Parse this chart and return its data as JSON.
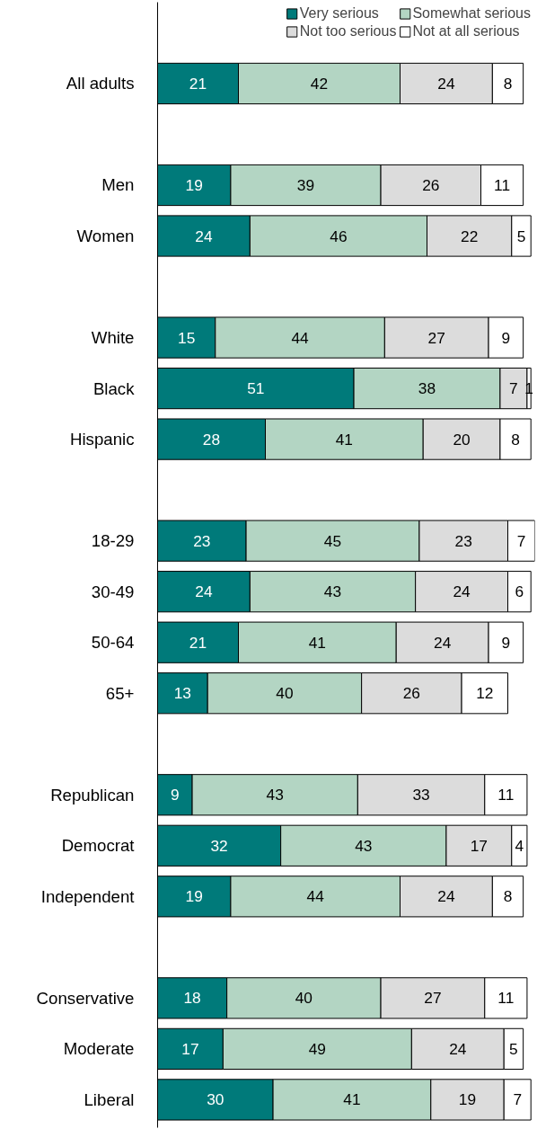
{
  "chart_data": {
    "type": "bar",
    "orientation": "horizontal",
    "stacked": true,
    "data_labels": true,
    "legend": "top",
    "grid": false,
    "categories": [
      "All adults",
      null,
      "Men",
      "Women",
      null,
      "White",
      "Black",
      "Hispanic",
      null,
      "18-29",
      "30-49",
      "50-64",
      "65+",
      null,
      "Republican",
      "Democrat",
      "Independent",
      null,
      "Conservative",
      "Moderate",
      "Liberal"
    ],
    "series": [
      {
        "name": "Very serious",
        "color": "#007a7a",
        "values": [
          21,
          null,
          19,
          24,
          null,
          15,
          51,
          28,
          null,
          23,
          24,
          21,
          13,
          null,
          9,
          32,
          19,
          null,
          18,
          17,
          30
        ]
      },
      {
        "name": "Somewhat serious",
        "color": "#b3d5c3",
        "values": [
          42,
          null,
          39,
          46,
          null,
          44,
          38,
          41,
          null,
          45,
          43,
          41,
          40,
          null,
          43,
          43,
          44,
          null,
          40,
          49,
          41
        ]
      },
      {
        "name": "Not too serious",
        "color": "#dcdcdc",
        "values": [
          24,
          null,
          26,
          22,
          null,
          27,
          7,
          20,
          null,
          23,
          24,
          24,
          26,
          null,
          33,
          17,
          24,
          null,
          27,
          24,
          19
        ]
      },
      {
        "name": "Not at all serious",
        "color": "#ffffff",
        "values": [
          8,
          null,
          11,
          5,
          null,
          9,
          1,
          8,
          null,
          7,
          6,
          9,
          12,
          null,
          11,
          4,
          8,
          null,
          11,
          5,
          7
        ]
      }
    ]
  }
}
